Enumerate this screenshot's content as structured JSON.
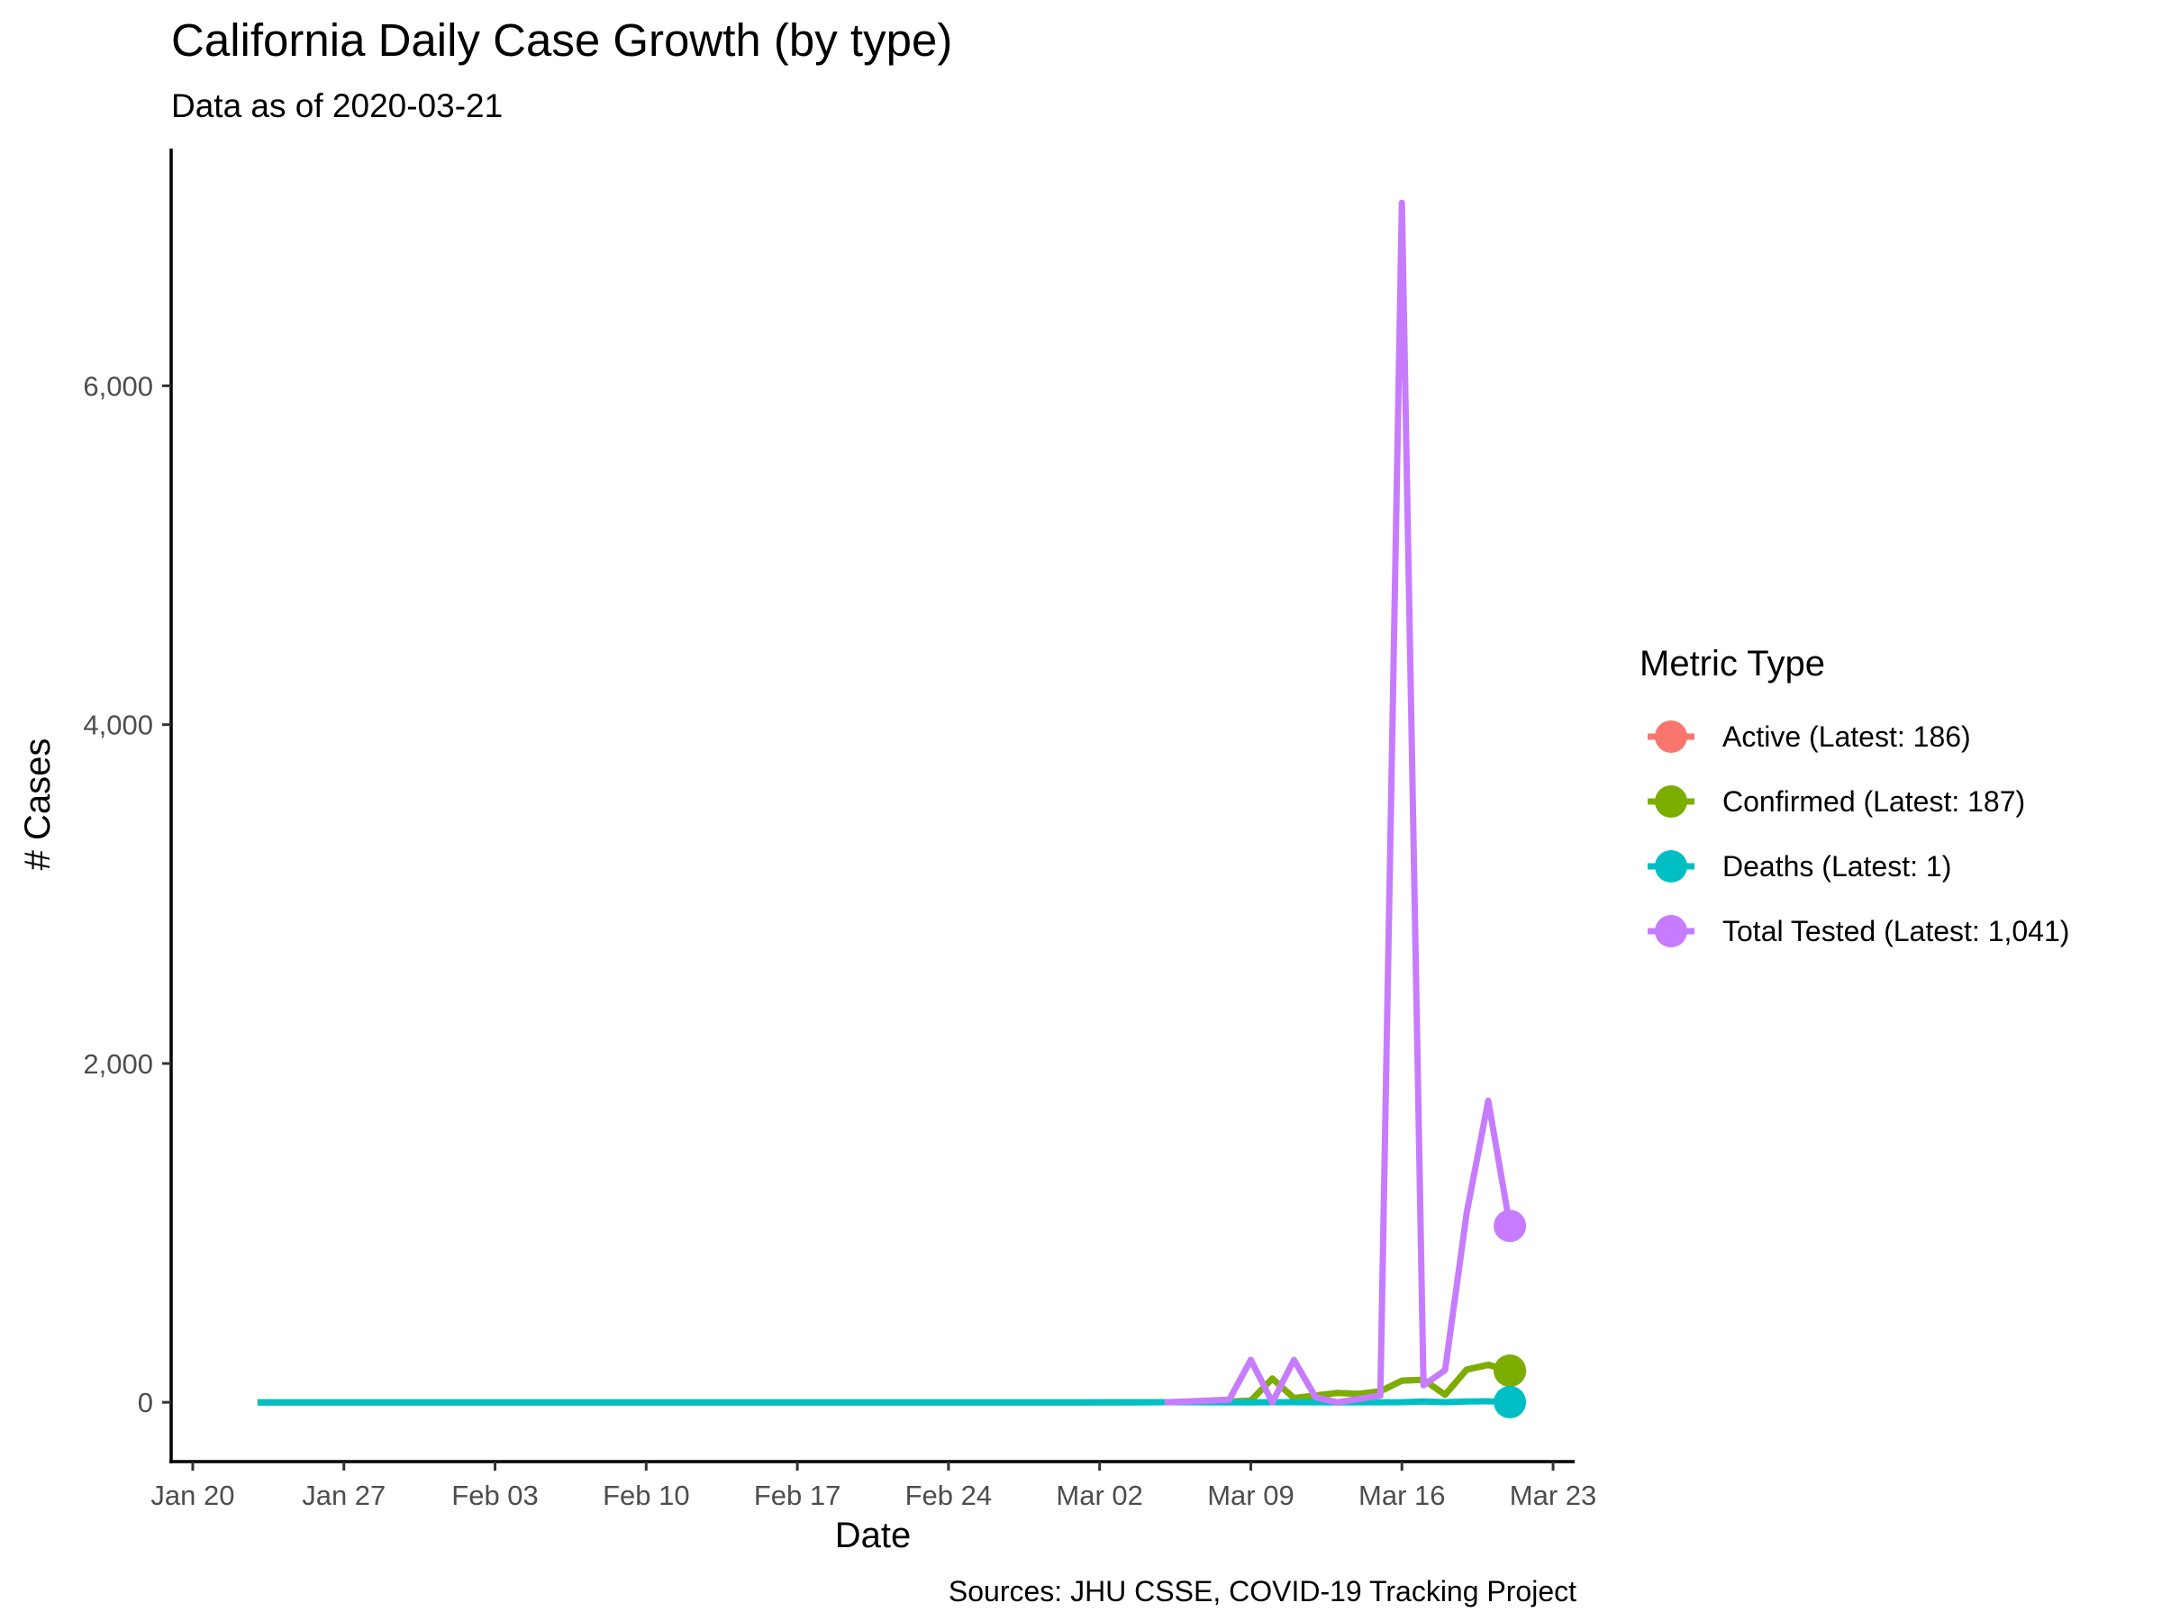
{
  "chart_data": {
    "type": "line",
    "title": "California Daily Case Growth (by type)",
    "subtitle": "Data as of 2020-03-21",
    "xlabel": "Date",
    "ylabel": "# Cases",
    "caption": "Sources: JHU CSSE, COVID-19 Tracking Project",
    "x_axis": {
      "type": "date",
      "range": [
        "2020-01-19",
        "2020-03-24"
      ],
      "ticks": [
        "2020-01-20",
        "2020-01-27",
        "2020-02-03",
        "2020-02-10",
        "2020-02-17",
        "2020-02-24",
        "2020-03-02",
        "2020-03-09",
        "2020-03-16",
        "2020-03-23"
      ],
      "tick_labels": [
        "Jan 20",
        "Jan 27",
        "Feb 03",
        "Feb 10",
        "Feb 17",
        "Feb 24",
        "Mar 02",
        "Mar 09",
        "Mar 16",
        "Mar 23"
      ]
    },
    "y_axis": {
      "range": [
        -350,
        7400
      ],
      "ticks": [
        0,
        2000,
        4000,
        6000
      ],
      "tick_labels": [
        "0",
        "2,000",
        "4,000",
        "6,000"
      ]
    },
    "grid": false,
    "legend": {
      "title": "Metric Type",
      "position": "right"
    },
    "series": [
      {
        "name": "Active (Latest: 186)",
        "color": "#F8766D",
        "points": [
          [
            "2020-01-23",
            0
          ],
          [
            "2020-03-01",
            0
          ],
          [
            "2020-03-05",
            1
          ],
          [
            "2020-03-08",
            4
          ],
          [
            "2020-03-09",
            10
          ],
          [
            "2020-03-10",
            140
          ],
          [
            "2020-03-11",
            25
          ],
          [
            "2020-03-12",
            40
          ],
          [
            "2020-03-13",
            55
          ],
          [
            "2020-03-14",
            50
          ],
          [
            "2020-03-15",
            65
          ],
          [
            "2020-03-16",
            128
          ],
          [
            "2020-03-17",
            133
          ],
          [
            "2020-03-18",
            45
          ],
          [
            "2020-03-19",
            193
          ],
          [
            "2020-03-20",
            220
          ],
          [
            "2020-03-21",
            186
          ]
        ],
        "latest": [
          "2020-03-21",
          186
        ]
      },
      {
        "name": "Confirmed (Latest: 187)",
        "color": "#7CAE00",
        "points": [
          [
            "2020-01-23",
            0
          ],
          [
            "2020-03-01",
            0
          ],
          [
            "2020-03-05",
            1
          ],
          [
            "2020-03-08",
            4
          ],
          [
            "2020-03-09",
            10
          ],
          [
            "2020-03-10",
            140
          ],
          [
            "2020-03-11",
            25
          ],
          [
            "2020-03-12",
            40
          ],
          [
            "2020-03-13",
            55
          ],
          [
            "2020-03-14",
            50
          ],
          [
            "2020-03-15",
            65
          ],
          [
            "2020-03-16",
            128
          ],
          [
            "2020-03-17",
            133
          ],
          [
            "2020-03-18",
            45
          ],
          [
            "2020-03-19",
            193
          ],
          [
            "2020-03-20",
            222
          ],
          [
            "2020-03-21",
            187
          ]
        ],
        "latest": [
          "2020-03-21",
          187
        ]
      },
      {
        "name": "Deaths (Latest: 1)",
        "color": "#00BFC4",
        "points": [
          [
            "2020-01-23",
            0
          ],
          [
            "2020-03-04",
            0
          ],
          [
            "2020-03-05",
            1
          ],
          [
            "2020-03-09",
            0
          ],
          [
            "2020-03-11",
            1
          ],
          [
            "2020-03-13",
            0
          ],
          [
            "2020-03-16",
            1
          ],
          [
            "2020-03-17",
            5
          ],
          [
            "2020-03-18",
            1
          ],
          [
            "2020-03-19",
            5
          ],
          [
            "2020-03-20",
            6
          ],
          [
            "2020-03-21",
            1
          ]
        ],
        "latest": [
          "2020-03-21",
          1
        ]
      },
      {
        "name": "Total Tested (Latest: 1,041)",
        "color": "#C77CFF",
        "points": [
          [
            "2020-03-05",
            0
          ],
          [
            "2020-03-06",
            5
          ],
          [
            "2020-03-07",
            10
          ],
          [
            "2020-03-08",
            15
          ],
          [
            "2020-03-09",
            250
          ],
          [
            "2020-03-10",
            0
          ],
          [
            "2020-03-11",
            250
          ],
          [
            "2020-03-12",
            30
          ],
          [
            "2020-03-13",
            0
          ],
          [
            "2020-03-14",
            20
          ],
          [
            "2020-03-15",
            40
          ],
          [
            "2020-03-16",
            7080
          ],
          [
            "2020-03-17",
            100
          ],
          [
            "2020-03-18",
            190
          ],
          [
            "2020-03-19",
            1120
          ],
          [
            "2020-03-20",
            1780
          ],
          [
            "2020-03-21",
            1041
          ]
        ],
        "latest": [
          "2020-03-21",
          1041
        ]
      }
    ]
  }
}
